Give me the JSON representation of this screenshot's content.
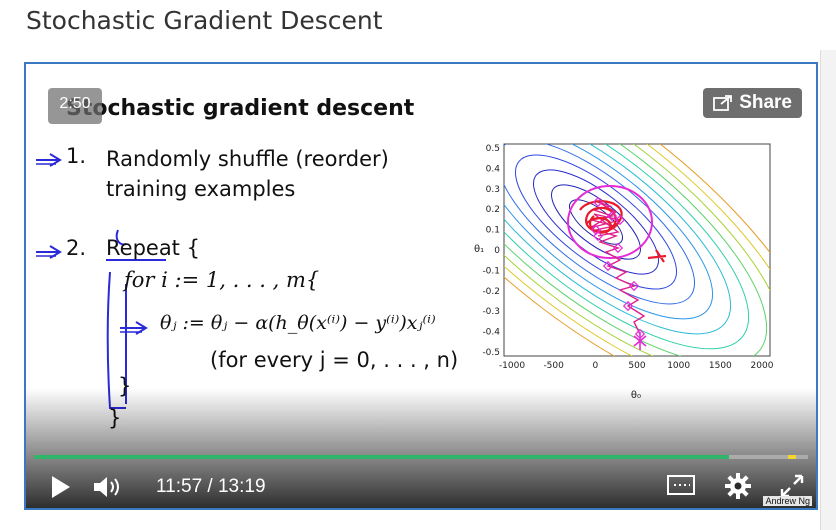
{
  "page": {
    "title": "Stochastic Gradient Descent"
  },
  "slide": {
    "title": "Stochastic gradient descent",
    "step1_number": "1.",
    "step1_text": "Randomly shuffle (reorder) training examples",
    "step2_number": "2.",
    "repeat": "Repeat {",
    "for_line": "for i := 1, . . . , m{",
    "update": "θⱼ := θⱼ − α(h_θ(x⁽ⁱ⁾) − y⁽ⁱ⁾)xⱼ⁽ⁱ⁾",
    "for_every": "(for every j = 0, . . . , n)",
    "close_inner": "}",
    "close_outer": "}",
    "credit": "Andrew Ng"
  },
  "plot": {
    "y_ticks": [
      "0.5",
      "0.4",
      "0.3",
      "0.2",
      "0.1",
      "0",
      "-0.1",
      "-0.2",
      "-0.3",
      "-0.4",
      "-0.5"
    ],
    "x_ticks": [
      "-1000",
      "-500",
      "0",
      "500",
      "1000",
      "1500",
      "2000"
    ],
    "xlabel": "θ₀",
    "ylabel": "θ₁"
  },
  "player": {
    "timestamp_badge": "2:50",
    "share_label": "Share",
    "current_time": "11:57",
    "separator": "/",
    "duration": "13:19",
    "progress": 0.898,
    "colors": {
      "progress": "#2fb66a",
      "buffer": "#f1d62b",
      "border": "#3a78c2"
    },
    "icons": [
      "play-icon",
      "volume-icon",
      "captions-icon",
      "gear-icon",
      "fullscreen-icon",
      "share-icon"
    ]
  }
}
